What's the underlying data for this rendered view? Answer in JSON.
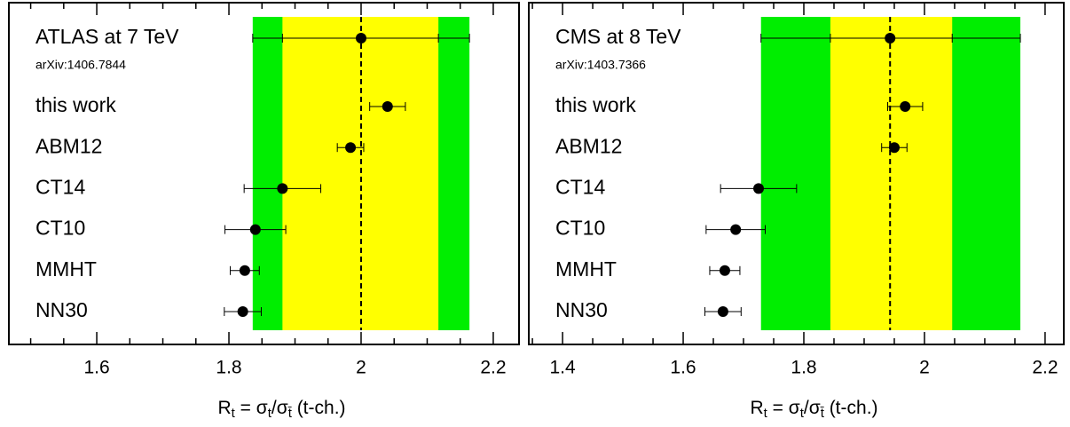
{
  "chart_data": [
    {
      "type": "errorbar-ratio",
      "measurement": {
        "name": "ATLAS at 7 TeV",
        "ref": "arXiv:1406.7844",
        "value": 2.0,
        "inner_band": [
          1.881,
          2.117
        ],
        "outer_band": [
          1.836,
          2.164
        ]
      },
      "categories": [
        "this work",
        "ABM12",
        "CT14",
        "CT10",
        "MMHT",
        "NN30"
      ],
      "values": [
        2.04,
        1.984,
        1.881,
        1.84,
        1.824,
        1.821
      ],
      "errors": [
        0.027,
        0.02,
        0.058,
        0.046,
        0.022,
        0.028
      ],
      "inner_color": "#ffff00",
      "outer_color": "#00ee00",
      "color": "#000000",
      "xlim": [
        1.467,
        2.239
      ],
      "xticks": [
        1.6,
        1.8,
        2,
        2.2
      ],
      "xminorticks": [
        1.5,
        1.55,
        1.65,
        1.7,
        1.75,
        1.85,
        1.9,
        1.95,
        2.05,
        2.1,
        2.15
      ],
      "xlabel_parts": [
        "R",
        "t",
        " = σ",
        "t",
        "/σ",
        "t̄",
        " (t-ch.)"
      ]
    },
    {
      "type": "errorbar-ratio",
      "measurement": {
        "name": "CMS at 8 TeV",
        "ref": "arXiv:1403.7366",
        "value": 1.943,
        "inner_band": [
          1.844,
          2.046
        ],
        "outer_band": [
          1.729,
          2.159
        ]
      },
      "categories": [
        "this work",
        "ABM12",
        "CT14",
        "CT10",
        "MMHT",
        "NN30"
      ],
      "values": [
        1.968,
        1.95,
        1.725,
        1.687,
        1.669,
        1.666
      ],
      "errors": [
        0.029,
        0.021,
        0.063,
        0.049,
        0.025,
        0.03
      ],
      "inner_color": "#ffff00",
      "outer_color": "#00ee00",
      "color": "#000000",
      "xlim": [
        1.344,
        2.231
      ],
      "xticks": [
        1.4,
        1.6,
        1.8,
        2,
        2.2
      ],
      "xminorticks": [
        1.35,
        1.45,
        1.5,
        1.55,
        1.65,
        1.7,
        1.75,
        1.85,
        1.9,
        1.95,
        2.05,
        2.1,
        2.15
      ],
      "xlabel_parts": [
        "R",
        "t",
        " = σ",
        "t",
        "/σ",
        "t̄",
        " (t-ch.)"
      ]
    }
  ]
}
